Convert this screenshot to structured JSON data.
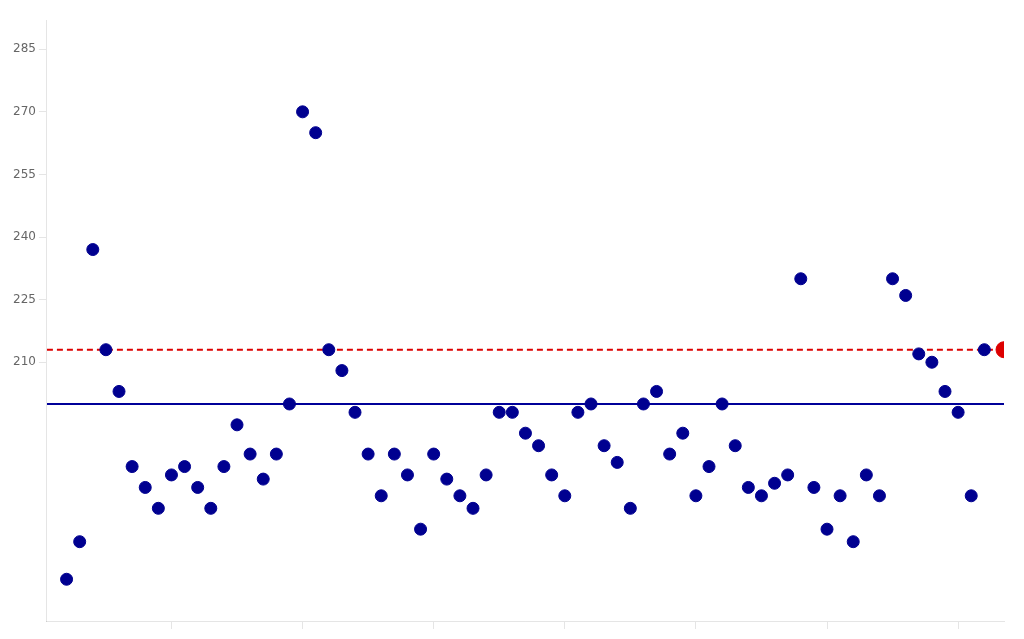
{
  "chart_data": {
    "type": "scatter",
    "x": [
      2,
      3,
      4,
      5,
      6,
      7,
      8,
      9,
      10,
      11,
      12,
      13,
      14,
      15,
      16,
      17,
      18,
      19,
      20,
      21,
      22,
      23,
      24,
      25,
      26,
      27,
      28,
      29,
      30,
      31,
      32,
      33,
      34,
      35,
      36,
      37,
      38,
      39,
      40,
      41,
      42,
      43,
      44,
      45,
      46,
      47,
      48,
      49,
      50,
      51,
      52,
      53,
      54,
      55,
      56,
      57,
      58,
      59,
      60,
      61,
      62,
      63,
      64,
      65,
      66,
      67,
      68,
      69,
      70,
      71,
      72
    ],
    "series": [
      {
        "color": "#000090",
        "values": [
          158,
          167,
          237,
          213,
          203,
          185,
          180,
          175,
          183,
          185,
          180,
          175,
          185,
          195,
          188,
          182,
          188,
          200,
          270,
          265,
          213,
          208,
          198,
          188,
          178,
          188,
          183,
          170,
          188,
          182,
          178,
          175,
          183,
          198,
          198,
          193,
          190,
          183,
          178,
          198,
          200,
          190,
          186,
          175,
          200,
          203,
          188,
          193,
          178,
          185,
          200,
          190,
          180,
          178,
          181,
          183,
          230,
          180,
          170,
          178,
          167,
          183,
          178,
          230,
          226,
          212,
          210,
          203,
          198,
          178,
          213
        ]
      },
      {
        "color": "#dd0000",
        "x": [
          73.5
        ],
        "values": [
          213
        ]
      }
    ],
    "reference_lines": [
      {
        "value": 213,
        "color": "#dd0000",
        "line_style": "dashed"
      },
      {
        "value": 200,
        "color": "#000099",
        "line_style": "solid"
      }
    ],
    "xlim": [
      0.5,
      73.5
    ],
    "xticks": [
      10,
      20,
      30,
      40,
      50,
      60,
      70
    ],
    "ylim": [
      148,
      292
    ],
    "yticks": [
      210,
      225,
      240,
      255,
      270,
      285
    ],
    "tick_labels": "y",
    "grid": false
  }
}
